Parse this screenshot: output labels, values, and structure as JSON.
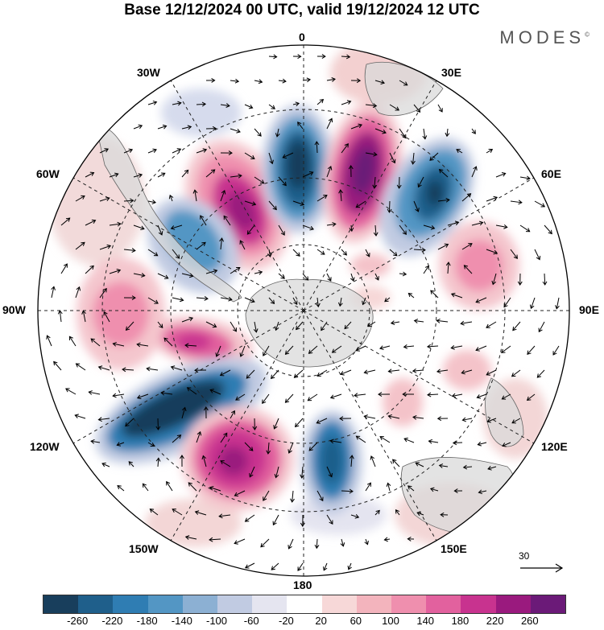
{
  "header": {
    "title": "Base 12/12/2024 00 UTC, valid 19/12/2024 12 UTC",
    "logo_text": "MODES",
    "logo_mark": "©"
  },
  "map": {
    "projection": "south-polar-stereographic",
    "meridian_labels": {
      "m0": "0",
      "m30e": "30E",
      "m60e": "60E",
      "m90e": "90E",
      "m120e": "120E",
      "m150e": "150E",
      "m180": "180",
      "m150w": "150W",
      "m120w": "120W",
      "m90w": "90W",
      "m60w": "60W",
      "m30w": "30W"
    },
    "vector_reference": "30"
  },
  "colorbar": {
    "colors": [
      "#183e5c",
      "#1f5f8b",
      "#2f7db3",
      "#5396c4",
      "#8cb0d3",
      "#c1cbe2",
      "#e5e5f0",
      "#ffffff",
      "#f7d8d8",
      "#f3b4bd",
      "#ef8fae",
      "#e2619e",
      "#c8338f",
      "#9a1a7e",
      "#6b1a78"
    ],
    "ticks": [
      "-260",
      "-220",
      "-180",
      "-140",
      "-100",
      "-60",
      "-20",
      "20",
      "60",
      "100",
      "140",
      "180",
      "220",
      "260"
    ]
  }
}
